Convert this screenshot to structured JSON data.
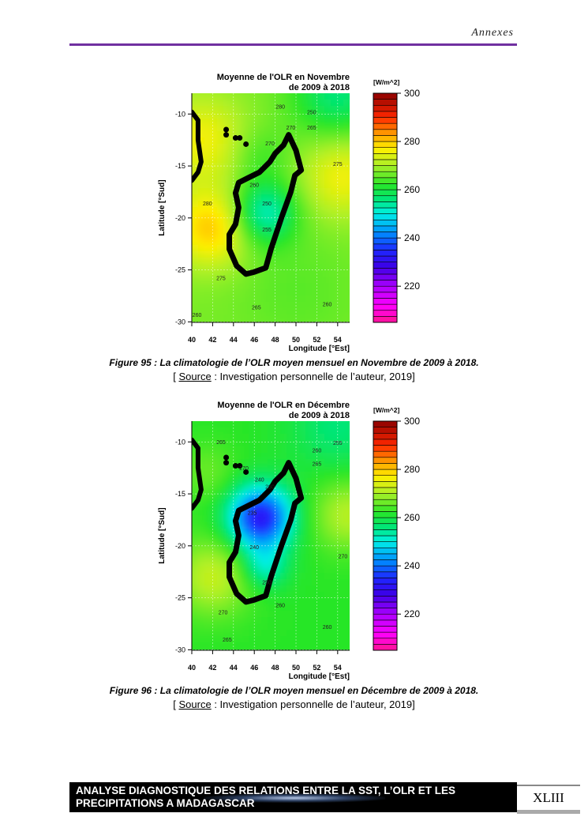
{
  "header": {
    "title": "Annexes",
    "rule_color": "#7030a0"
  },
  "figures": [
    {
      "caption_label": "Figure 95 :",
      "caption_text": "La climatologie de l’OLR moyen mensuel en Novembre de 2009 à 2018.",
      "source_open": "[ ",
      "source_word": "Source",
      "source_rest": " : Investigation personnelle de l’auteur, 2019]"
    },
    {
      "caption_label": "Figure 96 :",
      "caption_text": "La climatologie de l’OLR moyen mensuel en Décembre de 2009 à 2018.",
      "source_open": "[ ",
      "source_word": "Source",
      "source_rest": " : Investigation personnelle de l’auteur, 2019]"
    }
  ],
  "chart_data": [
    {
      "type": "heatmap",
      "title_line1": "Moyenne de l'OLR en Novembre",
      "title_line2": "de 2009 à 2018",
      "xlabel": "Longitude [°Est]",
      "ylabel": "Latitude [°Sud]",
      "colorbar_label": "[W/m^2]",
      "xlim": [
        40,
        55
      ],
      "ylim": [
        -30,
        -8
      ],
      "xticks": [
        40,
        42,
        44,
        46,
        48,
        50,
        52,
        54
      ],
      "yticks": [
        -10,
        -15,
        -20,
        -25,
        -30
      ],
      "colorbar_range": [
        205,
        300
      ],
      "colorbar_ticks": [
        300,
        280,
        260,
        240,
        220
      ],
      "contour_labels": [
        [
          48.5,
          -9.5,
          "280"
        ],
        [
          51.5,
          -10,
          "250"
        ],
        [
          51.5,
          -11.5,
          "265"
        ],
        [
          49.5,
          -11.5,
          "270"
        ],
        [
          47.5,
          -13,
          "270"
        ],
        [
          54,
          -15,
          "275"
        ],
        [
          46,
          -17,
          "260"
        ],
        [
          47.2,
          -18.8,
          "250"
        ],
        [
          47.2,
          -21.3,
          "255"
        ],
        [
          41.5,
          -18.8,
          "280"
        ],
        [
          42.8,
          -26,
          "275"
        ],
        [
          46.2,
          -28.8,
          "265"
        ],
        [
          53,
          -28.5,
          "260"
        ],
        [
          40.5,
          -29.5,
          "260"
        ]
      ]
    },
    {
      "type": "heatmap",
      "title_line1": "Moyenne de l'OLR en Décembre",
      "title_line2": "de 2009 à 2018",
      "xlabel": "Longitude [°Est]",
      "ylabel": "Latitude [°Sud]",
      "colorbar_label": "[W/m^2]",
      "xlim": [
        40,
        55
      ],
      "ylim": [
        -30,
        -8
      ],
      "xticks": [
        40,
        42,
        44,
        46,
        48,
        50,
        52,
        54
      ],
      "yticks": [
        -10,
        -15,
        -20,
        -25,
        -30
      ],
      "colorbar_range": [
        205,
        300
      ],
      "colorbar_ticks": [
        300,
        280,
        260,
        240,
        220
      ],
      "contour_labels": [
        [
          42.8,
          -10.2,
          "265"
        ],
        [
          54,
          -10.3,
          "255"
        ],
        [
          52,
          -11,
          "260"
        ],
        [
          52,
          -12.3,
          "265"
        ],
        [
          45,
          -12.7,
          "270"
        ],
        [
          46.5,
          -13.8,
          "240"
        ],
        [
          47.5,
          -14.5,
          "230"
        ],
        [
          45.8,
          -17,
          "235"
        ],
        [
          46,
          -20.3,
          "240"
        ],
        [
          47.2,
          -23.7,
          "250"
        ],
        [
          48.5,
          -25.9,
          "260"
        ],
        [
          43,
          -26.6,
          "270"
        ],
        [
          53,
          -28,
          "260"
        ],
        [
          43.4,
          -29.2,
          "265"
        ],
        [
          54.5,
          -21.2,
          "270"
        ]
      ]
    }
  ],
  "footer": {
    "line1": "ANALYSE DIAGNOSTIQUE DES RELATIONS ENTRE LA SST, L’OLR ET LES",
    "line2": "PRECIPITATIONS A MADAGASCAR",
    "page_number": "XLIII"
  }
}
